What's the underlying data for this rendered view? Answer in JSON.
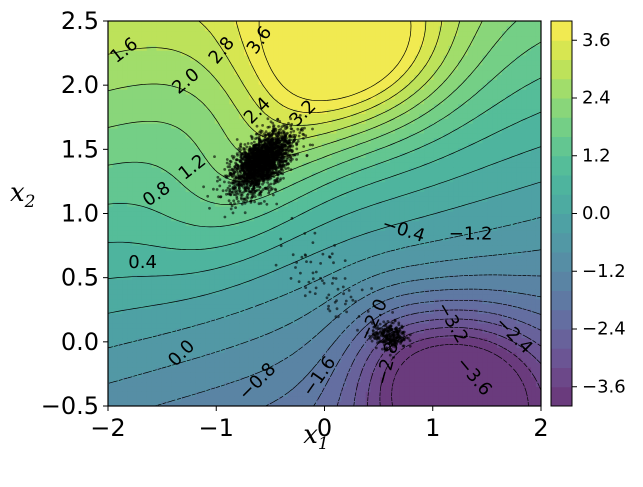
{
  "chart_data": {
    "type": "contour",
    "xlim": [
      -2,
      2
    ],
    "ylim": [
      -0.5,
      2.5
    ],
    "xticks": [
      -2,
      -1,
      0,
      1,
      2
    ],
    "xtick_labels": [
      "−2",
      "−1",
      "0",
      "1",
      "2"
    ],
    "yticks": [
      -0.5,
      0.0,
      0.5,
      1.0,
      1.5,
      2.0,
      2.5
    ],
    "ytick_labels": [
      "−0.5",
      "0.0",
      "0.5",
      "1.0",
      "1.5",
      "2.0",
      "2.5"
    ],
    "xlabel_main": "x",
    "xlabel_sub": "1",
    "ylabel_main": "x",
    "ylabel_sub": "2",
    "colormap": "viridis",
    "fill_alpha": 0.8,
    "levels": [
      -4.0,
      -3.6,
      -3.2,
      -2.8,
      -2.4,
      -2.0,
      -1.6,
      -1.2,
      -0.8,
      -0.4,
      0.0,
      0.4,
      0.8,
      1.2,
      1.6,
      2.0,
      2.4,
      2.8,
      3.2,
      3.6,
      4.0
    ],
    "colorbar": {
      "ticks": [
        -3.6,
        -2.4,
        -1.2,
        0.0,
        1.2,
        2.4,
        3.6
      ],
      "tick_labels": [
        "−3.6",
        "−2.4",
        "−1.2",
        "0.0",
        "1.2",
        "2.4",
        "3.6"
      ],
      "range": [
        -4.0,
        4.0
      ]
    },
    "contour_labels": [
      {
        "text": "3.6",
        "x": -0.6,
        "y": 2.35,
        "angle": 55
      },
      {
        "text": "2.8",
        "x": -0.95,
        "y": 2.27,
        "angle": 50
      },
      {
        "text": "1.6",
        "x": -1.85,
        "y": 2.27,
        "angle": 38
      },
      {
        "text": "2.0",
        "x": -1.28,
        "y": 2.03,
        "angle": 40
      },
      {
        "text": "2.4",
        "x": -0.62,
        "y": 1.8,
        "angle": 45
      },
      {
        "text": "3.2",
        "x": -0.2,
        "y": 1.78,
        "angle": 45
      },
      {
        "text": "1.2",
        "x": -1.22,
        "y": 1.36,
        "angle": 38
      },
      {
        "text": "0.8",
        "x": -1.55,
        "y": 1.15,
        "angle": 35
      },
      {
        "text": "0.4",
        "x": -1.68,
        "y": 0.62,
        "angle": 0
      },
      {
        "text": "-0.4",
        "x": 0.73,
        "y": 0.87,
        "angle": -18
      },
      {
        "text": "-1.2",
        "x": 1.35,
        "y": 0.84,
        "angle": 0
      },
      {
        "text": "-2.0",
        "x": 0.45,
        "y": 0.17,
        "angle": 65
      },
      {
        "text": "-3.2",
        "x": 1.18,
        "y": 0.15,
        "angle": -60
      },
      {
        "text": "-2.4",
        "x": 1.75,
        "y": 0.05,
        "angle": -45
      },
      {
        "text": "-3.6",
        "x": 1.38,
        "y": -0.27,
        "angle": -50
      },
      {
        "text": "-2.8",
        "x": 0.58,
        "y": -0.17,
        "angle": 75
      },
      {
        "text": "0.0",
        "x": -1.32,
        "y": -0.09,
        "angle": 45
      },
      {
        "text": "-0.8",
        "x": -0.62,
        "y": -0.31,
        "angle": 45
      },
      {
        "text": "-1.6",
        "x": -0.05,
        "y": -0.27,
        "angle": 55
      }
    ],
    "scatter_clusters": [
      {
        "center": [
          -0.58,
          1.4
        ],
        "spread_major": 0.16,
        "spread_minor": 0.085,
        "angle_deg": 38,
        "count": 2200,
        "color": "#000000"
      },
      {
        "center": [
          0.6,
          0.05
        ],
        "spread_major": 0.08,
        "spread_minor": 0.05,
        "angle_deg": 0,
        "count": 260,
        "color": "#000000"
      },
      {
        "center": [
          0.05,
          0.45
        ],
        "spread_major": 0.3,
        "spread_minor": 0.12,
        "angle_deg": -40,
        "count": 70,
        "color": "#000000"
      }
    ],
    "grid": false
  }
}
